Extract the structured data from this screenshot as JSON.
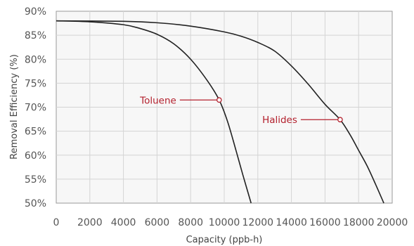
{
  "chart_data": {
    "type": "line",
    "xlabel": "Capacity (ppb-h)",
    "ylabel": "Removal Efficiency (%)",
    "xlim": [
      0,
      20000
    ],
    "ylim": [
      50,
      90
    ],
    "x_ticks": [
      "0",
      "2000",
      "4000",
      "6000",
      "8000",
      "10000",
      "12000",
      "14000",
      "16000",
      "18000",
      "20000"
    ],
    "y_ticks": [
      "50%",
      "55%",
      "60%",
      "65%",
      "70%",
      "75%",
      "80%",
      "85%",
      "90%"
    ],
    "grid": true,
    "series": [
      {
        "name": "Toluene",
        "points": [
          [
            0,
            88
          ],
          [
            2000,
            87.8
          ],
          [
            4000,
            87.2
          ],
          [
            5000,
            86.4
          ],
          [
            6000,
            85.2
          ],
          [
            7000,
            83.2
          ],
          [
            8000,
            80
          ],
          [
            9000,
            75.5
          ],
          [
            9700,
            71.5
          ],
          [
            10200,
            67
          ],
          [
            10700,
            61
          ],
          [
            11100,
            56
          ],
          [
            11600,
            50
          ]
        ],
        "annotation": {
          "label": "Toluene",
          "x": 9700,
          "y": 71.5
        }
      },
      {
        "name": "Halides",
        "points": [
          [
            0,
            88
          ],
          [
            4000,
            87.9
          ],
          [
            6000,
            87.6
          ],
          [
            8000,
            86.9
          ],
          [
            10000,
            85.7
          ],
          [
            11000,
            84.8
          ],
          [
            12000,
            83.5
          ],
          [
            13000,
            81.7
          ],
          [
            14000,
            78.6
          ],
          [
            15000,
            74.8
          ],
          [
            16000,
            70.6
          ],
          [
            16900,
            67.4
          ],
          [
            17500,
            64.2
          ],
          [
            18000,
            61
          ],
          [
            18500,
            57.8
          ],
          [
            19000,
            54
          ],
          [
            19500,
            50
          ]
        ],
        "annotation": {
          "label": "Halides",
          "x": 16900,
          "y": 67.4
        }
      }
    ]
  },
  "colors": {
    "annotation": "#b3202d",
    "curve": "#222222",
    "grid": "#d4d4d4"
  }
}
